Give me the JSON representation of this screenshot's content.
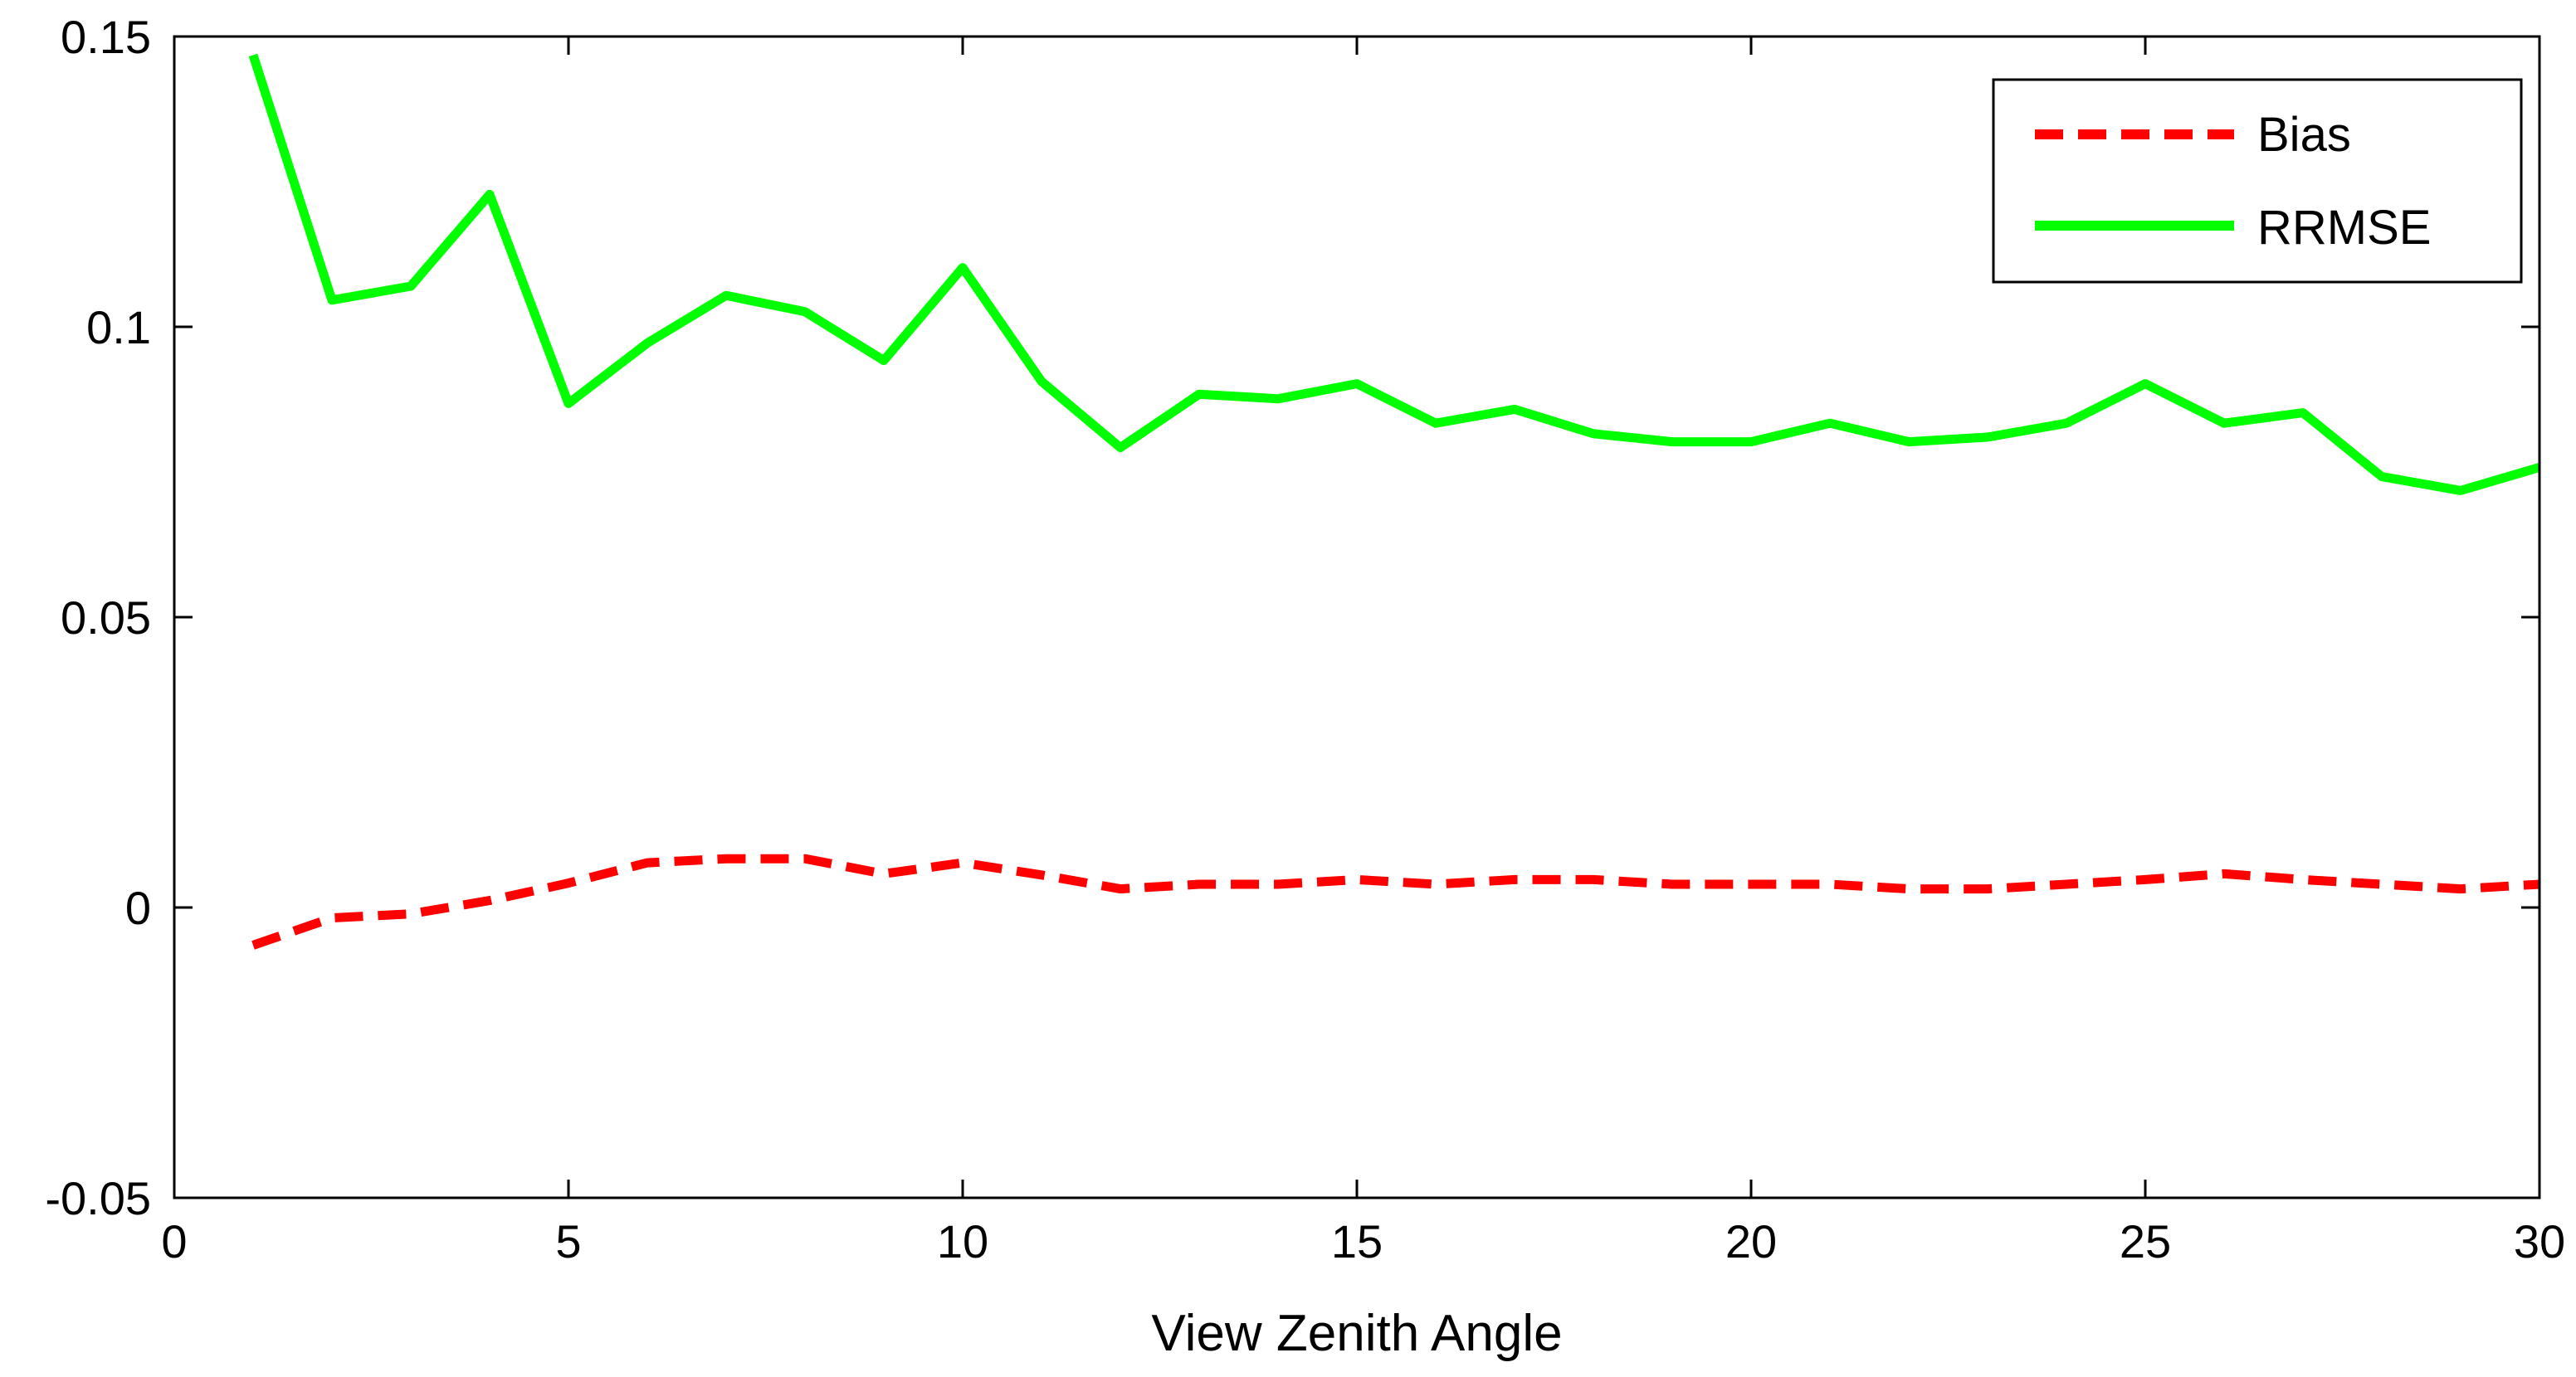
{
  "chart_data": {
    "type": "line",
    "title": "",
    "xlabel": "View Zenith Angle",
    "ylabel": "",
    "xlim": [
      0,
      30
    ],
    "ylim": [
      -0.05,
      0.15
    ],
    "xticks": [
      "0",
      "5",
      "10",
      "15",
      "20",
      "25",
      "30"
    ],
    "yticks": [
      "-0.05",
      "0",
      "0.05",
      "0.1",
      "0.15"
    ],
    "grid": false,
    "legend_position": "top-right",
    "x": [
      1,
      2,
      3,
      4,
      5,
      6,
      7,
      8,
      9,
      10,
      11,
      12,
      13,
      14,
      15,
      16,
      17,
      18,
      19,
      20,
      21,
      22,
      23,
      24,
      25,
      26,
      27,
      28,
      29,
      30
    ],
    "series": [
      {
        "name": "Bias",
        "color": "#ff0000",
        "style": "dashed",
        "values": [
          -0.0065,
          -0.0018,
          -0.0011,
          0.0012,
          0.0042,
          0.0077,
          0.0084,
          0.0084,
          0.0058,
          0.0077,
          0.0056,
          0.0032,
          0.004,
          0.004,
          0.0048,
          0.004,
          0.0048,
          0.0048,
          0.004,
          0.004,
          0.004,
          0.0032,
          0.0032,
          0.004,
          0.0048,
          0.0058,
          0.0048,
          0.004,
          0.0032,
          0.004
        ]
      },
      {
        "name": "RRMSE",
        "color": "#00ff00",
        "style": "solid",
        "values": [
          0.1468,
          0.1046,
          0.107,
          0.1228,
          0.0868,
          0.0972,
          0.1054,
          0.1026,
          0.0942,
          0.1102,
          0.0906,
          0.0792,
          0.0884,
          0.0876,
          0.0902,
          0.0834,
          0.0858,
          0.0816,
          0.0802,
          0.0802,
          0.0834,
          0.0802,
          0.081,
          0.0834,
          0.0902,
          0.0834,
          0.0852,
          0.0742,
          0.0718,
          0.0758
        ]
      }
    ]
  }
}
